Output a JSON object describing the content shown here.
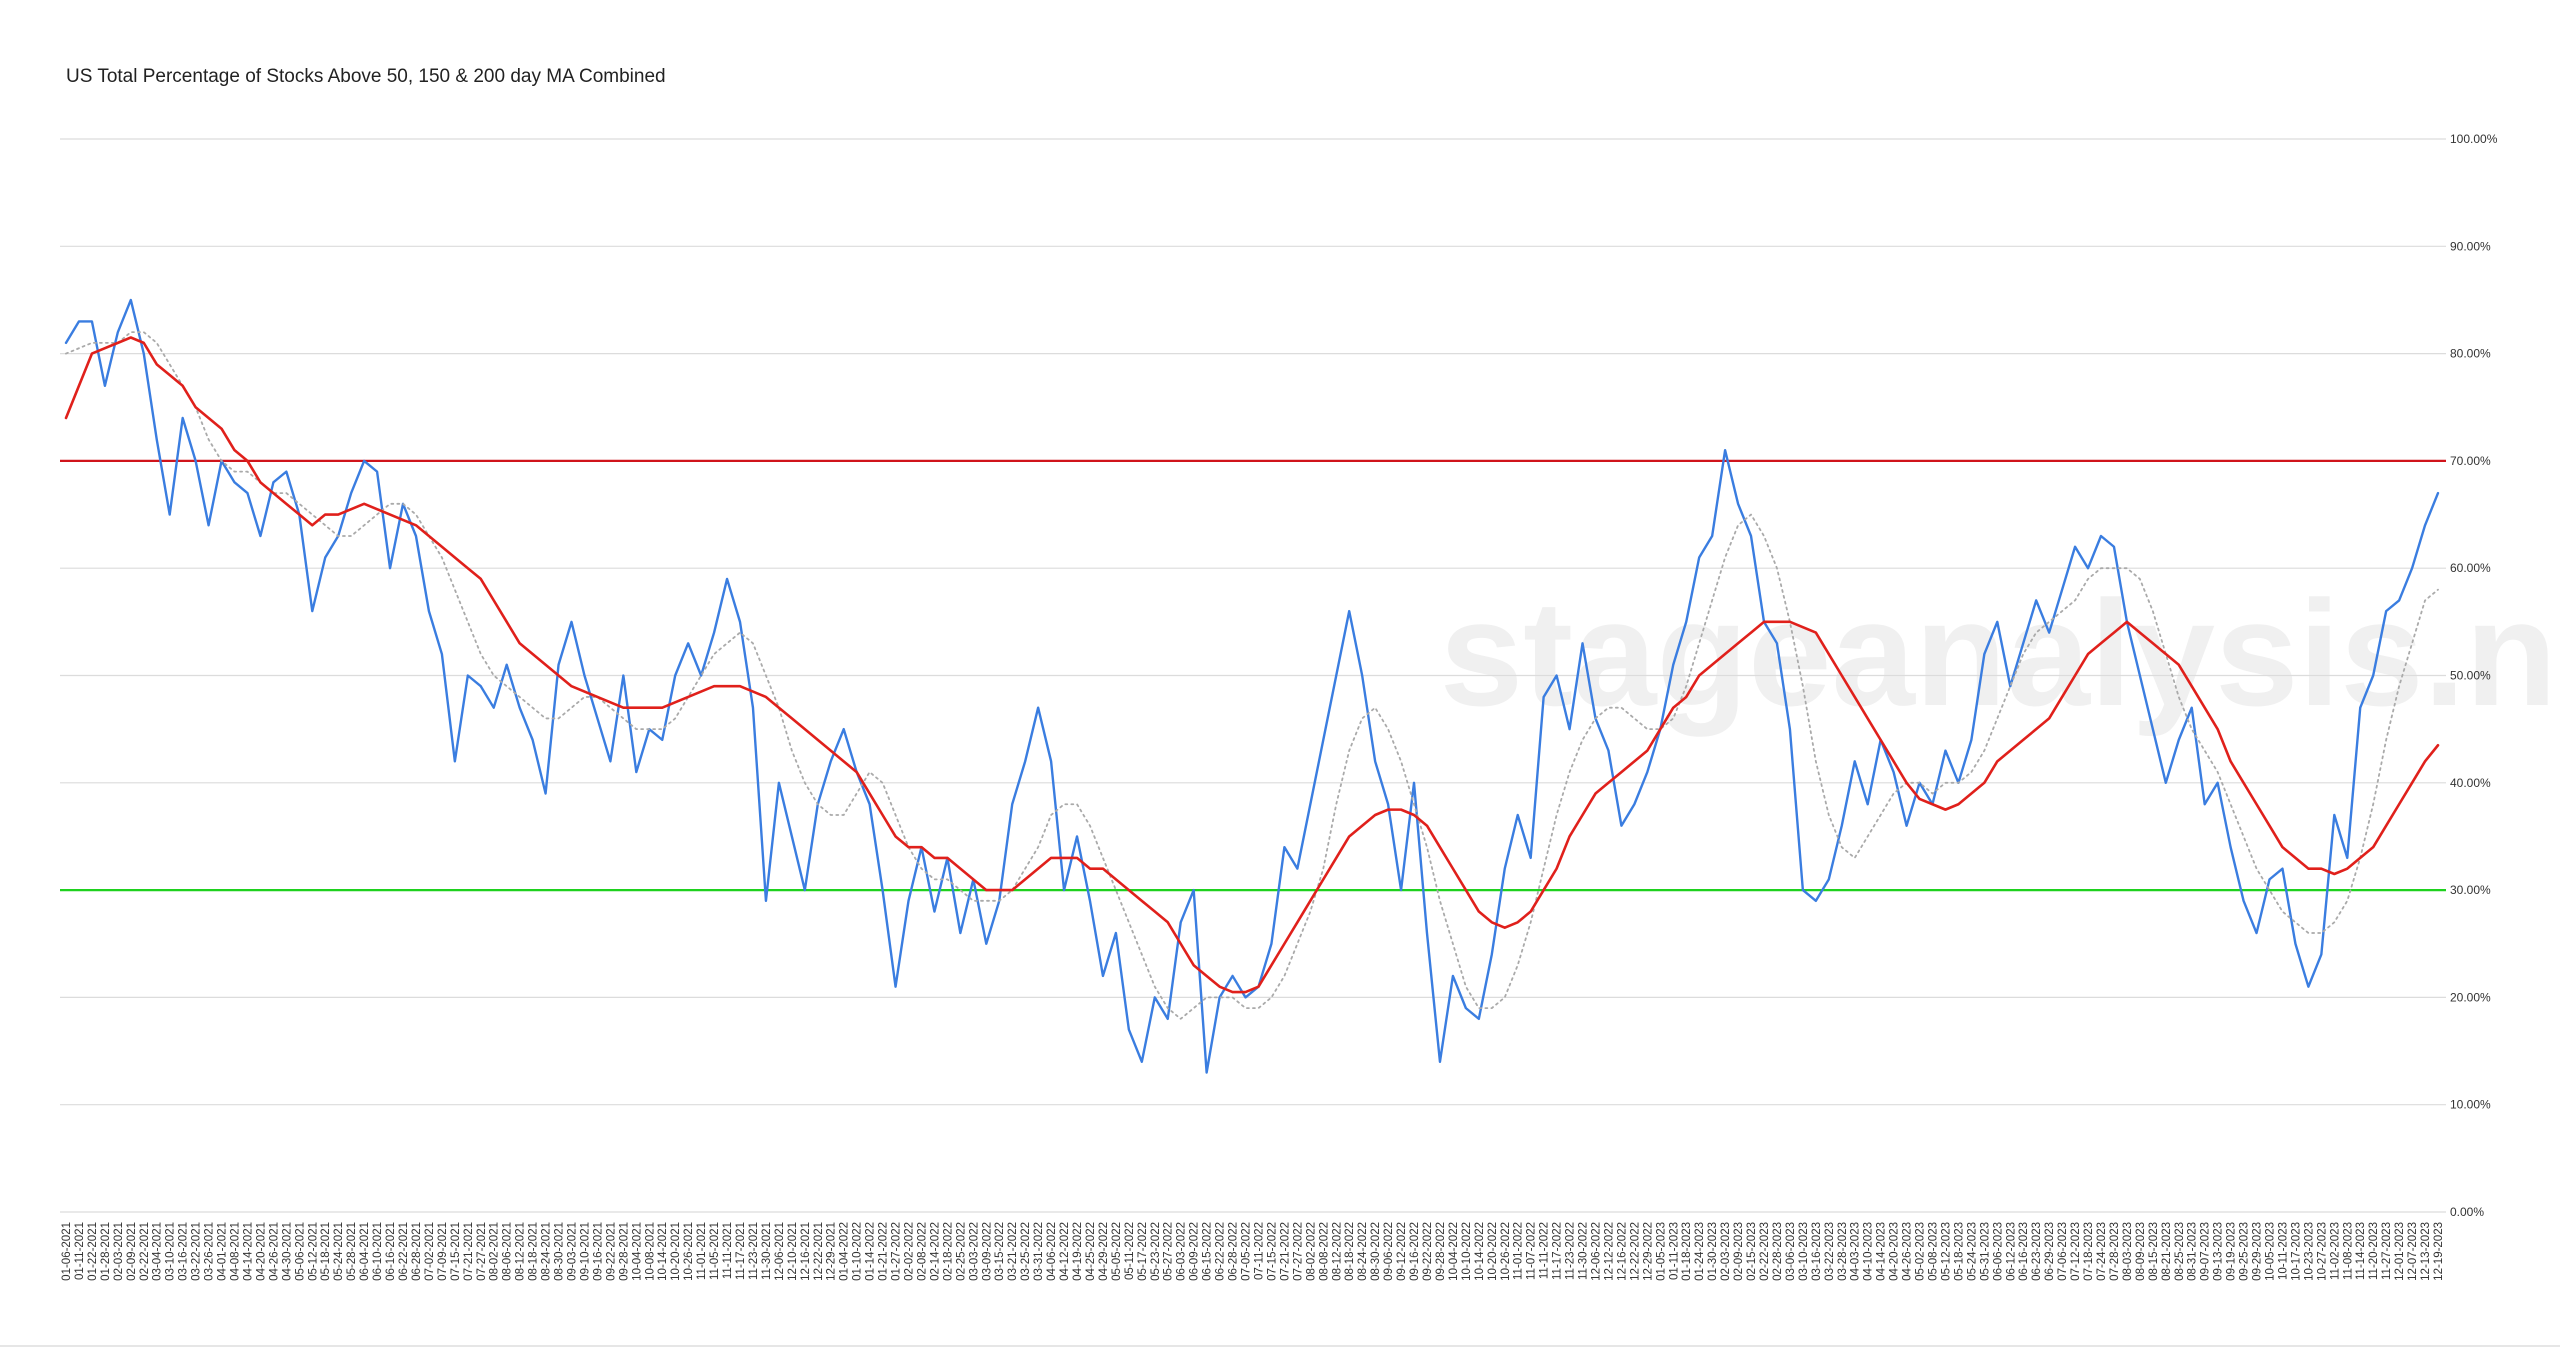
{
  "chart_data": {
    "type": "line",
    "title": "US Total Percentage of Stocks Above 50, 150 & 200 day MA Combined",
    "watermark": "stageanalysis.net",
    "categories": [
      "01-06-2021",
      "01-11-2021",
      "01-22-2021",
      "01-28-2021",
      "02-03-2021",
      "02-09-2021",
      "02-22-2021",
      "03-04-2021",
      "03-10-2021",
      "03-16-2021",
      "03-22-2021",
      "03-26-2021",
      "04-01-2021",
      "04-08-2021",
      "04-14-2021",
      "04-20-2021",
      "04-26-2021",
      "04-30-2021",
      "05-06-2021",
      "05-12-2021",
      "05-18-2021",
      "05-24-2021",
      "05-28-2021",
      "06-04-2021",
      "06-10-2021",
      "06-16-2021",
      "06-22-2021",
      "06-28-2021",
      "07-02-2021",
      "07-09-2021",
      "07-15-2021",
      "07-21-2021",
      "07-27-2021",
      "08-02-2021",
      "08-06-2021",
      "08-12-2021",
      "08-18-2021",
      "08-24-2021",
      "08-30-2021",
      "09-03-2021",
      "09-10-2021",
      "09-16-2021",
      "09-22-2021",
      "09-28-2021",
      "10-04-2021",
      "10-08-2021",
      "10-14-2021",
      "10-20-2021",
      "10-26-2021",
      "11-01-2021",
      "11-05-2021",
      "11-11-2021",
      "11-17-2021",
      "11-23-2021",
      "11-30-2021",
      "12-06-2021",
      "12-10-2021",
      "12-16-2021",
      "12-22-2021",
      "12-29-2021",
      "01-04-2022",
      "01-10-2022",
      "01-14-2022",
      "01-21-2022",
      "01-27-2022",
      "02-02-2022",
      "02-08-2022",
      "02-14-2022",
      "02-18-2022",
      "02-25-2022",
      "03-03-2022",
      "03-09-2022",
      "03-15-2022",
      "03-21-2022",
      "03-25-2022",
      "03-31-2022",
      "04-06-2022",
      "04-12-2022",
      "04-19-2022",
      "04-25-2022",
      "04-29-2022",
      "05-05-2022",
      "05-11-2022",
      "05-17-2022",
      "05-23-2022",
      "05-27-2022",
      "06-03-2022",
      "06-09-2022",
      "06-15-2022",
      "06-22-2022",
      "06-28-2022",
      "07-05-2022",
      "07-11-2022",
      "07-15-2022",
      "07-21-2022",
      "07-27-2022",
      "08-02-2022",
      "08-08-2022",
      "08-12-2022",
      "08-18-2022",
      "08-24-2022",
      "08-30-2022",
      "09-06-2022",
      "09-12-2022",
      "09-16-2022",
      "09-22-2022",
      "09-28-2022",
      "10-04-2022",
      "10-10-2022",
      "10-14-2022",
      "10-20-2022",
      "10-26-2022",
      "11-01-2022",
      "11-07-2022",
      "11-11-2022",
      "11-17-2022",
      "11-23-2022",
      "11-30-2022",
      "12-06-2022",
      "12-12-2022",
      "12-16-2022",
      "12-22-2022",
      "12-29-2022",
      "01-05-2023",
      "01-11-2023",
      "01-18-2023",
      "01-24-2023",
      "01-30-2023",
      "02-03-2023",
      "02-09-2023",
      "02-15-2023",
      "02-22-2023",
      "02-28-2023",
      "03-06-2023",
      "03-10-2023",
      "03-16-2023",
      "03-22-2023",
      "03-28-2023",
      "04-03-2023",
      "04-10-2023",
      "04-14-2023",
      "04-20-2023",
      "04-26-2023",
      "05-02-2023",
      "05-08-2023",
      "05-12-2023",
      "05-18-2023",
      "05-24-2023",
      "05-31-2023",
      "06-06-2023",
      "06-12-2023",
      "06-16-2023",
      "06-23-2023",
      "06-29-2023",
      "07-06-2023",
      "07-12-2023",
      "07-18-2023",
      "07-24-2023",
      "07-28-2023",
      "08-03-2023",
      "08-09-2023",
      "08-15-2023",
      "08-21-2023",
      "08-25-2023",
      "08-31-2023",
      "09-07-2023",
      "09-13-2023",
      "09-19-2023",
      "09-25-2023",
      "09-29-2023",
      "10-05-2023",
      "10-11-2023",
      "10-17-2023",
      "10-23-2023",
      "10-27-2023",
      "11-02-2023",
      "11-08-2023",
      "11-14-2023",
      "11-20-2023",
      "11-27-2023",
      "12-01-2023",
      "12-07-2023",
      "12-13-2023",
      "12-19-2023"
    ],
    "series": [
      {
        "color": "#3a7de0",
        "dash": false,
        "width": 2.4,
        "values": [
          81,
          83,
          83,
          77,
          82,
          85,
          80,
          72,
          65,
          74,
          70,
          64,
          70,
          68,
          67,
          63,
          68,
          69,
          65,
          56,
          61,
          63,
          67,
          70,
          69,
          60,
          66,
          63,
          56,
          52,
          42,
          50,
          49,
          47,
          51,
          47,
          44,
          39,
          51,
          55,
          50,
          46,
          42,
          50,
          41,
          45,
          44,
          50,
          53,
          50,
          54,
          59,
          55,
          47,
          29,
          40,
          35,
          30,
          38,
          42,
          45,
          41,
          38,
          30,
          21,
          29,
          34,
          28,
          33,
          26,
          31,
          25,
          29,
          38,
          42,
          47,
          42,
          30,
          35,
          29,
          22,
          26,
          17,
          14,
          20,
          18,
          27,
          30,
          13,
          20,
          22,
          20,
          21,
          25,
          34,
          32,
          38,
          44,
          50,
          56,
          50,
          42,
          38,
          30,
          40,
          26,
          14,
          22,
          19,
          18,
          24,
          32,
          37,
          33,
          48,
          50,
          45,
          53,
          46,
          43,
          36,
          38,
          41,
          45,
          51,
          55,
          61,
          63,
          71,
          66,
          63,
          55,
          53,
          45,
          30,
          29,
          31,
          36,
          42,
          38,
          44,
          41,
          36,
          40,
          38,
          43,
          40,
          44,
          52,
          55,
          49,
          53,
          57,
          54,
          58,
          62,
          60,
          63,
          62,
          55,
          50,
          45,
          40,
          44,
          47,
          38,
          40,
          34,
          29,
          26,
          31,
          32,
          25,
          21,
          24,
          37,
          33,
          47,
          50,
          56,
          57,
          60,
          64,
          67
        ]
      },
      {
        "color": "#aaaaaa",
        "dash": true,
        "width": 1.8,
        "values": [
          80,
          80.5,
          81,
          81,
          81,
          82,
          82,
          81,
          79,
          77,
          75,
          72,
          70,
          69,
          69,
          68,
          67,
          67,
          66,
          65,
          64,
          63,
          63,
          64,
          65,
          66,
          66,
          65,
          63,
          61,
          58,
          55,
          52,
          50,
          49,
          48,
          47,
          46,
          46,
          47,
          48,
          48,
          47,
          46,
          45,
          45,
          45,
          46,
          48,
          50,
          52,
          53,
          54,
          53,
          50,
          47,
          43,
          40,
          38,
          37,
          37,
          39,
          41,
          40,
          37,
          34,
          32,
          31,
          31,
          30,
          29,
          29,
          29,
          30,
          32,
          34,
          37,
          38,
          38,
          36,
          33,
          30,
          27,
          24,
          21,
          19,
          18,
          19,
          20,
          20,
          20,
          19,
          19,
          20,
          22,
          25,
          28,
          32,
          38,
          43,
          46,
          47,
          45,
          42,
          38,
          34,
          29,
          25,
          21,
          19,
          19,
          20,
          23,
          27,
          32,
          37,
          41,
          44,
          46,
          47,
          47,
          46,
          45,
          45,
          46,
          49,
          53,
          57,
          61,
          64,
          65,
          63,
          60,
          55,
          49,
          42,
          37,
          34,
          33,
          35,
          37,
          39,
          40,
          40,
          39,
          40,
          40,
          41,
          43,
          46,
          49,
          52,
          54,
          55,
          56,
          57,
          59,
          60,
          60,
          60,
          59,
          56,
          52,
          48,
          45,
          43,
          41,
          38,
          35,
          32,
          30,
          28,
          27,
          26,
          26,
          27,
          29,
          33,
          38,
          44,
          49,
          53,
          57,
          58
        ]
      },
      {
        "color": "#e0201b",
        "dash": false,
        "width": 2.6,
        "values": [
          74,
          77,
          80,
          80.5,
          81,
          81.5,
          81,
          79,
          78,
          77,
          75,
          74,
          73,
          71,
          70,
          68,
          67,
          66,
          65,
          64,
          65,
          65,
          65.5,
          66,
          65.5,
          65,
          64.5,
          64,
          63,
          62,
          61,
          60,
          59,
          57,
          55,
          53,
          52,
          51,
          50,
          49,
          48.5,
          48,
          47.5,
          47,
          47,
          47,
          47,
          47.5,
          48,
          48.5,
          49,
          49,
          49,
          48.5,
          48,
          47,
          46,
          45,
          44,
          43,
          42,
          41,
          39,
          37,
          35,
          34,
          34,
          33,
          33,
          32,
          31,
          30,
          30,
          30,
          31,
          32,
          33,
          33,
          33,
          32,
          32,
          31,
          30,
          29,
          28,
          27,
          25,
          23,
          22,
          21,
          20.5,
          20.5,
          21,
          23,
          25,
          27,
          29,
          31,
          33,
          35,
          36,
          37,
          37.5,
          37.5,
          37,
          36,
          34,
          32,
          30,
          28,
          27,
          26.5,
          27,
          28,
          30,
          32,
          35,
          37,
          39,
          40,
          41,
          42,
          43,
          45,
          47,
          48,
          50,
          51,
          52,
          53,
          54,
          55,
          55,
          55,
          54.5,
          54,
          52,
          50,
          48,
          46,
          44,
          42,
          40,
          38.5,
          38,
          37.5,
          38,
          39,
          40,
          42,
          43,
          44,
          45,
          46,
          48,
          50,
          52,
          53,
          54,
          55,
          54,
          53,
          52,
          51,
          49,
          47,
          45,
          42,
          40,
          38,
          36,
          34,
          33,
          32,
          32,
          31.5,
          32,
          33,
          34,
          36,
          38,
          40,
          42,
          43.5
        ]
      }
    ],
    "reference_lines": [
      {
        "value": 70,
        "color": "#d0141b"
      },
      {
        "value": 30,
        "color": "#1ed11e"
      }
    ],
    "ylim": [
      0,
      100
    ],
    "yticks": [
      {
        "value": 0,
        "label": "0.00%"
      },
      {
        "value": 10,
        "label": "10.00%"
      },
      {
        "value": 20,
        "label": "20.00%"
      },
      {
        "value": 30,
        "label": "30.00%"
      },
      {
        "value": 40,
        "label": "40.00%"
      },
      {
        "value": 50,
        "label": "50.00%"
      },
      {
        "value": 60,
        "label": "60.00%"
      },
      {
        "value": 70,
        "label": "70.00%"
      },
      {
        "value": 80,
        "label": "80.00%"
      },
      {
        "value": 90,
        "label": "90.00%"
      },
      {
        "value": 100,
        "label": "100.00%"
      }
    ],
    "grid": true
  }
}
